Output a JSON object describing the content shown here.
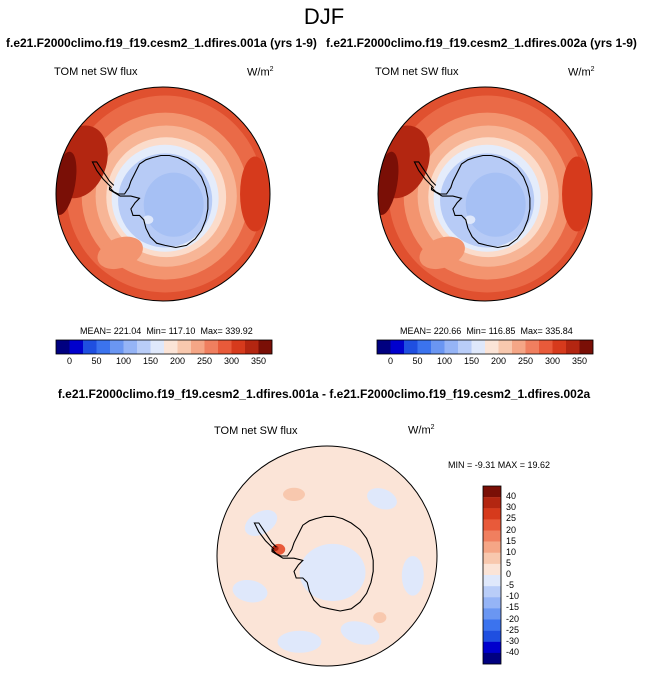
{
  "title": "DJF",
  "panels": [
    {
      "case": "f.e21.F2000climo.f19_f19.cesm2_1.dfires.001a (yrs 1-9)",
      "variable": "TOM net SW flux",
      "units_base": "W/m",
      "units_exp": "2",
      "mean": "MEAN= 221.04",
      "min": "Min= 117.10",
      "max": "Max= 339.92"
    },
    {
      "case": "f.e21.F2000climo.f19_f19.cesm2_1.dfires.002a (yrs 1-9)",
      "variable": "TOM net SW flux",
      "units_base": "W/m",
      "units_exp": "2",
      "mean": "MEAN= 220.66",
      "min": "Min= 116.85",
      "max": "Max= 335.84"
    }
  ],
  "difference": {
    "case": "f.e21.F2000climo.f19_f19.cesm2_1.dfires.001a - f.e21.F2000climo.f19_f19.cesm2_1.dfires.002a",
    "variable": "TOM net SW flux",
    "units_base": "W/m",
    "units_exp": "2",
    "stats": "MIN =  -9.31  MAX =  19.62"
  },
  "chart_data": [
    {
      "type": "heatmap",
      "projection": "south-polar-stereographic",
      "colorbar": {
        "orientation": "horizontal",
        "ticks": [
          "0",
          "50",
          "100",
          "150",
          "200",
          "250",
          "300",
          "350"
        ],
        "colors": [
          "#000080",
          "#0000cd",
          "#1f4fe0",
          "#3b73ee",
          "#6a96f2",
          "#95b4f6",
          "#b9cdf8",
          "#dfe8fb",
          "#fbe4d7",
          "#f8c8ae",
          "#f5a686",
          "#f07f5f",
          "#e85a3a",
          "#d63a1c",
          "#b32611",
          "#7a0f06"
        ]
      },
      "regions": [
        {
          "area": "Antarctica interior",
          "approx_value": 130
        },
        {
          "area": "Antarctic coastal margin",
          "approx_value": 175
        },
        {
          "area": "Southern Ocean sea-ice zone",
          "approx_value": 240
        },
        {
          "area": "Southern Ocean mid-latitudes",
          "approx_value": 285
        },
        {
          "area": "Subtropical edge",
          "approx_value": 320
        }
      ]
    },
    {
      "type": "heatmap",
      "projection": "south-polar-stereographic",
      "colorbar": {
        "orientation": "horizontal",
        "ticks": [
          "0",
          "50",
          "100",
          "150",
          "200",
          "250",
          "300",
          "350"
        ],
        "colors": [
          "#000080",
          "#0000cd",
          "#1f4fe0",
          "#3b73ee",
          "#6a96f2",
          "#95b4f6",
          "#b9cdf8",
          "#dfe8fb",
          "#fbe4d7",
          "#f8c8ae",
          "#f5a686",
          "#f07f5f",
          "#e85a3a",
          "#d63a1c",
          "#b32611",
          "#7a0f06"
        ]
      },
      "regions": [
        {
          "area": "Antarctica interior",
          "approx_value": 130
        },
        {
          "area": "Antarctic coastal margin",
          "approx_value": 175
        },
        {
          "area": "Southern Ocean sea-ice zone",
          "approx_value": 240
        },
        {
          "area": "Southern Ocean mid-latitudes",
          "approx_value": 285
        },
        {
          "area": "Subtropical edge",
          "approx_value": 318
        }
      ]
    },
    {
      "type": "heatmap",
      "projection": "south-polar-stereographic",
      "colorbar": {
        "orientation": "vertical",
        "ticks": [
          "40",
          "30",
          "25",
          "20",
          "15",
          "10",
          "5",
          "0",
          "-5",
          "-10",
          "-15",
          "-20",
          "-25",
          "-30",
          "-40"
        ],
        "colors": [
          "#7a0f06",
          "#b32611",
          "#d63a1c",
          "#e85a3a",
          "#f07f5f",
          "#f5a686",
          "#f8c8ae",
          "#fbe4d7",
          "#dfe8fb",
          "#b9cdf8",
          "#95b4f6",
          "#6a96f2",
          "#3b73ee",
          "#1f4fe0",
          "#0000cd",
          "#000080"
        ]
      },
      "regions": [
        {
          "area": "Most of domain",
          "approx_value": 2
        },
        {
          "area": "Scattered ocean patches",
          "approx_value": -3
        },
        {
          "area": "Antarctic Peninsula hotspot",
          "approx_value": 15
        }
      ]
    }
  ]
}
